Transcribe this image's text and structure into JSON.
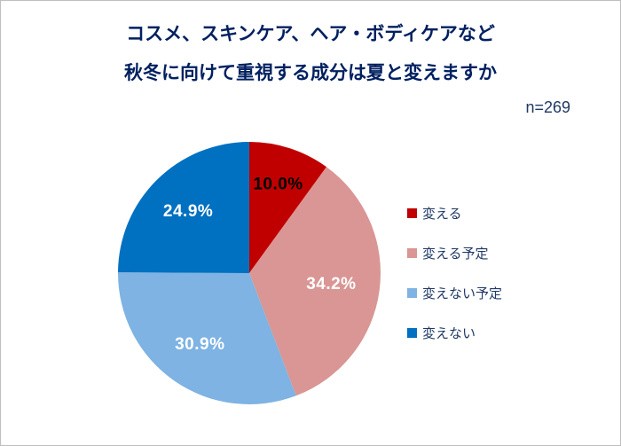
{
  "frame": {
    "border_color": "#bfbfbf",
    "background": "#ffffff"
  },
  "title": {
    "line1": "コスメ、スキンケア、ヘア・ボディケアなど",
    "line2": "秋冬に向けて重視する成分は夏と変えますか",
    "color": "#002060"
  },
  "sample_size": "n=269",
  "chart_data": {
    "type": "pie",
    "title": "コスメ、スキンケア、ヘア・ボディケアなど 秋冬に向けて重視する成分は夏と変えますか",
    "sample_size_note": "n=269",
    "start_angle_deg": 0,
    "direction": "clockwise",
    "labels": [
      "変える",
      "変える予定",
      "変えない予定",
      "変えない"
    ],
    "values": [
      10.0,
      34.2,
      30.9,
      24.9
    ],
    "value_labels": [
      "10.0%",
      "34.2%",
      "30.9%",
      "24.9%"
    ],
    "colors": [
      "#c00000",
      "#d99694",
      "#7eb3e3",
      "#0070c0"
    ],
    "value_label_colors": [
      "#000000",
      "#ffffff",
      "#ffffff",
      "#ffffff"
    ],
    "value_label_radius": [
      0.71,
      0.63,
      0.66,
      0.66
    ],
    "legend_position": "right",
    "legend_text_color": "#1f3864",
    "grid": false
  }
}
